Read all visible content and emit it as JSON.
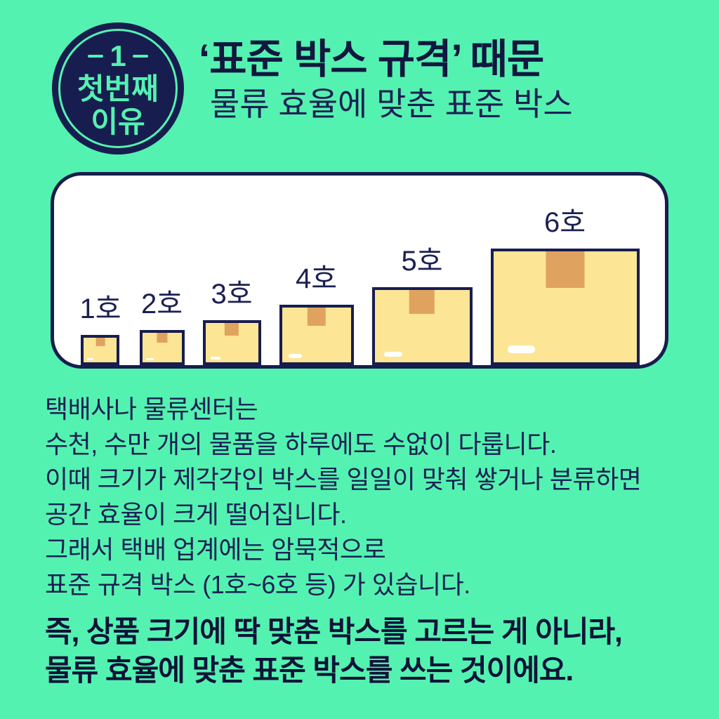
{
  "badge": {
    "number": "1",
    "label_line1": "첫번째",
    "label_line2": "이유"
  },
  "header": {
    "title": "‘표준 박스 규격’ 때문",
    "subtitle": "물류 효율에 맞춘 표준 박스"
  },
  "diagram": {
    "boxes": [
      {
        "label": "1호"
      },
      {
        "label": "2호"
      },
      {
        "label": "3호"
      },
      {
        "label": "4호"
      },
      {
        "label": "5호"
      },
      {
        "label": "6호"
      }
    ]
  },
  "body": {
    "lines": [
      "택배사나 물류센터는",
      "수천, 수만 개의 물품을 하루에도 수없이 다룹니다.",
      "이때 크기가 제각각인 박스를 일일이 맞춰 쌓거나 분류하면",
      "공간 효율이 크게 떨어집니다.",
      "그래서 택배 업계에는 암묵적으로",
      "표준 규격 박스 (1호~6호 등) 가 있습니다."
    ]
  },
  "conclusion": {
    "lines": [
      "즉, 상품 크기에 딱 맞춘 박스를 고르는 게 아니라,",
      "물류 효율에 맞춘 표준 박스를 쓰는 것이에요."
    ]
  },
  "colors": {
    "background": "#54f2b1",
    "navy": "#181d4f",
    "box_yellow": "#fce595",
    "tape_orange": "#dfa35f",
    "panel_white": "#ffffff"
  }
}
